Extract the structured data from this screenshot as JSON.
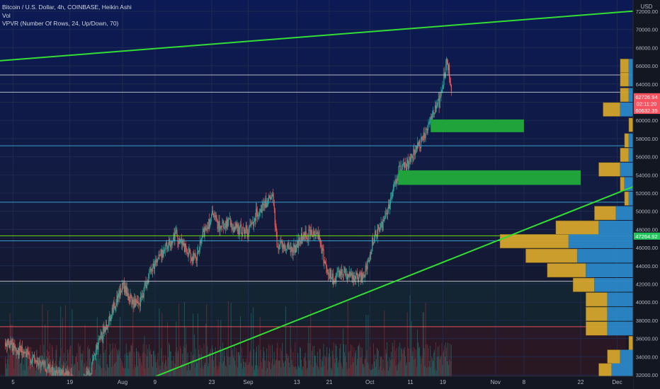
{
  "legend": {
    "symbol_title": "Bitcoin / U.S. Dollar, 4h, COINBASE, Heikin Ashi",
    "volume_label": "Vol",
    "vpvr_label": "VPVR (Number Of Rows, 24, Up/Down, 70)"
  },
  "chart_data": {
    "type": "candlestick",
    "price_axis": {
      "currency": "USD",
      "ticks": [
        72000,
        70000,
        68000,
        66000,
        64000,
        62000,
        60000,
        58000,
        56000,
        54000,
        52000,
        50000,
        48000,
        46000,
        44000,
        42000,
        40000,
        38000,
        36000,
        34000,
        32000
      ],
      "tick_labels": [
        "72000.00",
        "70000.00",
        "68000.00",
        "66000.00",
        "64000.00",
        "62000.00",
        "60000.00",
        "58000.00",
        "56000.00",
        "54000.00",
        "52000.00",
        "50000.00",
        "48000.00",
        "46000.00",
        "44000.00",
        "42000.00",
        "40000.00",
        "38000.00",
        "36000.00",
        "34000.00",
        "32000.00"
      ],
      "range": [
        32000,
        73500
      ]
    },
    "price_tags": [
      {
        "label": "62726.94",
        "price": 62600,
        "color": "#f7525f"
      },
      {
        "label": "02:11:20",
        "price": 61850,
        "color": "#f7525f"
      },
      {
        "label": "60632.35",
        "price": 61100,
        "color": "#f7525f"
      },
      {
        "label": "47264.92",
        "price": 47264.92,
        "color": "#22c55e"
      }
    ],
    "time_axis": [
      {
        "label": "5",
        "date": "2021-07-05"
      },
      {
        "label": "19",
        "date": "2021-07-19"
      },
      {
        "label": "Aug",
        "date": "2021-08-01"
      },
      {
        "label": "9",
        "date": "2021-08-09"
      },
      {
        "label": "23",
        "date": "2021-08-23"
      },
      {
        "label": "Sep",
        "date": "2021-09-01"
      },
      {
        "label": "13",
        "date": "2021-09-13"
      },
      {
        "label": "21",
        "date": "2021-09-21"
      },
      {
        "label": "Oct",
        "date": "2021-10-01"
      },
      {
        "label": "11",
        "date": "2021-10-11"
      },
      {
        "label": "19",
        "date": "2021-10-19"
      },
      {
        "label": "Nov",
        "date": "2021-11-01"
      },
      {
        "label": "8",
        "date": "2021-11-08"
      },
      {
        "label": "22",
        "date": "2021-11-22"
      },
      {
        "label": "Dec",
        "date": "2021-12-01"
      }
    ],
    "series": [
      {
        "date": "2021-07-03",
        "price": 35600
      },
      {
        "date": "2021-07-07",
        "price": 34500
      },
      {
        "date": "2021-07-11",
        "price": 33300
      },
      {
        "date": "2021-07-15",
        "price": 32200
      },
      {
        "date": "2021-07-19",
        "price": 31800
      },
      {
        "date": "2021-07-21",
        "price": 30800
      },
      {
        "date": "2021-07-24",
        "price": 32400
      },
      {
        "date": "2021-07-26",
        "price": 35500
      },
      {
        "date": "2021-07-28",
        "price": 37500
      },
      {
        "date": "2021-07-30",
        "price": 39800
      },
      {
        "date": "2021-08-01",
        "price": 41800
      },
      {
        "date": "2021-08-03",
        "price": 40100
      },
      {
        "date": "2021-08-05",
        "price": 39500
      },
      {
        "date": "2021-08-07",
        "price": 42500
      },
      {
        "date": "2021-08-09",
        "price": 44500
      },
      {
        "date": "2021-08-12",
        "price": 46200
      },
      {
        "date": "2021-08-14",
        "price": 47500
      },
      {
        "date": "2021-08-17",
        "price": 45400
      },
      {
        "date": "2021-08-19",
        "price": 44500
      },
      {
        "date": "2021-08-21",
        "price": 47800
      },
      {
        "date": "2021-08-23",
        "price": 49500
      },
      {
        "date": "2021-08-25",
        "price": 48300
      },
      {
        "date": "2021-08-27",
        "price": 48800
      },
      {
        "date": "2021-08-29",
        "price": 48000
      },
      {
        "date": "2021-09-01",
        "price": 47800
      },
      {
        "date": "2021-09-03",
        "price": 49900
      },
      {
        "date": "2021-09-05",
        "price": 50800
      },
      {
        "date": "2021-09-07",
        "price": 51500
      },
      {
        "date": "2021-09-08",
        "price": 46500
      },
      {
        "date": "2021-09-10",
        "price": 46200
      },
      {
        "date": "2021-09-12",
        "price": 45700
      },
      {
        "date": "2021-09-14",
        "price": 47000
      },
      {
        "date": "2021-09-16",
        "price": 47500
      },
      {
        "date": "2021-09-18",
        "price": 47800
      },
      {
        "date": "2021-09-20",
        "price": 44000
      },
      {
        "date": "2021-09-22",
        "price": 42200
      },
      {
        "date": "2021-09-24",
        "price": 43500
      },
      {
        "date": "2021-09-26",
        "price": 43000
      },
      {
        "date": "2021-09-28",
        "price": 42500
      },
      {
        "date": "2021-09-30",
        "price": 43500
      },
      {
        "date": "2021-10-02",
        "price": 47500
      },
      {
        "date": "2021-10-04",
        "price": 48500
      },
      {
        "date": "2021-10-06",
        "price": 51300
      },
      {
        "date": "2021-10-08",
        "price": 54500
      },
      {
        "date": "2021-10-10",
        "price": 55000
      },
      {
        "date": "2021-10-12",
        "price": 56500
      },
      {
        "date": "2021-10-14",
        "price": 57800
      },
      {
        "date": "2021-10-16",
        "price": 60500
      },
      {
        "date": "2021-10-18",
        "price": 62000
      },
      {
        "date": "2021-10-20",
        "price": 66500
      },
      {
        "date": "2021-10-21",
        "price": 63500
      }
    ],
    "volume_profile": {
      "rows": [
        {
          "price": 66000,
          "up": 1,
          "down": 2
        },
        {
          "price": 64500,
          "up": 1,
          "down": 2
        },
        {
          "price": 62800,
          "up": 1,
          "down": 2
        },
        {
          "price": 61200,
          "up": 3,
          "down": 4
        },
        {
          "price": 59500,
          "up": 0,
          "down": 1
        },
        {
          "price": 57800,
          "up": 1,
          "down": 1
        },
        {
          "price": 56200,
          "up": 1,
          "down": 2
        },
        {
          "price": 54600,
          "up": 3,
          "down": 5
        },
        {
          "price": 53000,
          "up": 2,
          "down": 1
        },
        {
          "price": 51400,
          "up": 1,
          "down": 1
        },
        {
          "price": 49800,
          "up": 4,
          "down": 5
        },
        {
          "price": 48200,
          "up": 8,
          "down": 10
        },
        {
          "price": 46700,
          "up": 15,
          "down": 16
        },
        {
          "price": 45100,
          "up": 13,
          "down": 12
        },
        {
          "price": 43500,
          "up": 11,
          "down": 9
        },
        {
          "price": 41900,
          "up": 9,
          "down": 5
        },
        {
          "price": 40300,
          "up": 6,
          "down": 5
        },
        {
          "price": 38700,
          "up": 6,
          "down": 5
        },
        {
          "price": 37100,
          "up": 6,
          "down": 5
        },
        {
          "price": 35500,
          "up": 0,
          "down": 1
        },
        {
          "price": 34000,
          "up": 3,
          "down": 3
        },
        {
          "price": 32500,
          "up": 5,
          "down": 3
        }
      ]
    },
    "drawings": {
      "horizontal_lines": [
        {
          "price": 65000,
          "color": "#cfd3dc"
        },
        {
          "price": 63100,
          "color": "#cfd3dc"
        },
        {
          "price": 57200,
          "color": "#3ab6e0"
        },
        {
          "price": 51000,
          "color": "#3ab6e0"
        },
        {
          "price": 47300,
          "color": "#7cfc00"
        },
        {
          "price": 46750,
          "color": "#3ab6e0"
        },
        {
          "price": 42300,
          "color": "#cfd3dc"
        },
        {
          "price": 37300,
          "color": "#ff5a66"
        }
      ],
      "trend_lines": [
        {
          "from": {
            "date": "2021-06-30",
            "price": 66500
          },
          "to": {
            "date": "2021-12-10",
            "price": 72200
          },
          "color": "#33dd33"
        },
        {
          "from": {
            "date": "2021-08-09",
            "price": 31800
          },
          "to": {
            "date": "2021-12-10",
            "price": 53600
          },
          "color": "#33dd33"
        }
      ],
      "zones": [
        {
          "from": "2021-10-16",
          "to": "2021-11-08",
          "price_top": 60100,
          "price_bottom": 58700,
          "color": "#1fa33a"
        },
        {
          "from": "2021-10-08",
          "to": "2021-11-22",
          "price_top": 54500,
          "price_bottom": 52900,
          "color": "#1fa33a"
        }
      ]
    },
    "colors": {
      "background": "#131722",
      "up": "#26a69a",
      "down": "#ef5350",
      "vp_up": "#2a87c7",
      "vp_down": "#d4a52c"
    }
  }
}
